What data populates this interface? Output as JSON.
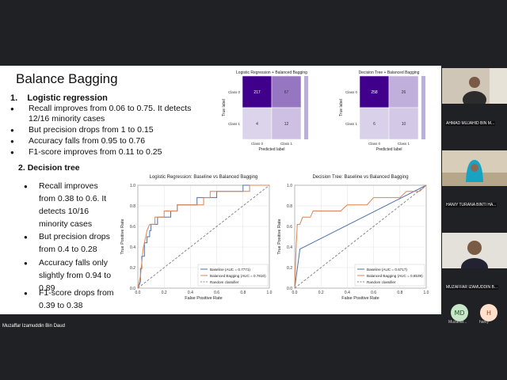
{
  "speaker_name": "Muzaffar Izamuddin Bin Daud",
  "slide": {
    "title": "Balance Bagging",
    "section1": {
      "number": "1.",
      "title": "Logistic regression"
    },
    "bullets1": [
      "Recall improves from 0.06 to 0.75. It detects",
      "12/16 minority cases",
      "But precision drops from 1 to 0.15",
      "Accuracy falls from 0.95 to 0.76",
      "F1-score improves from 0.11 to 0.25"
    ],
    "section2": {
      "number": "2.",
      "title": "Decision tree"
    },
    "bullets2": [
      [
        "Recall improves",
        "from 0.38 to 0.6. It",
        "detects 10/16",
        "minority cases"
      ],
      [
        "But precision drops",
        "from 0.4 to 0.28"
      ],
      [
        "Accuracy falls only",
        "slightly from 0.94 to",
        "0.89"
      ],
      [
        "F1-score drops from",
        "0.39 to 0.38"
      ]
    ]
  },
  "chart_data": [
    {
      "type": "heatmap",
      "title": "Logistic Regression + Balanced Bagging",
      "xlabel": "Predicted label",
      "ylabel": "True label",
      "x_categories": [
        "Class 0",
        "Class 1"
      ],
      "y_categories": [
        "Class 0",
        "Class 1"
      ],
      "values": [
        [
          217,
          67
        ],
        [
          4,
          12
        ]
      ]
    },
    {
      "type": "heatmap",
      "title": "Decision Tree + Balanced Bagging",
      "xlabel": "Predicted label",
      "ylabel": "True label",
      "x_categories": [
        "Class 0",
        "Class 1"
      ],
      "y_categories": [
        "Class 0",
        "Class 1"
      ],
      "values": [
        [
          258,
          26
        ],
        [
          6,
          10
        ]
      ]
    },
    {
      "type": "line",
      "title": "Logistic Regression: Baseline vs Balanced Bagging",
      "xlabel": "False Positive Rate",
      "ylabel": "True Positive Rate",
      "xlim": [
        0,
        1
      ],
      "ylim": [
        0,
        1
      ],
      "ticks": [
        "0.0",
        "0.2",
        "0.4",
        "0.6",
        "0.8",
        "1.0"
      ],
      "legend": "bottom-right",
      "series": [
        {
          "name": "Baseline (AUC = 0.7771)",
          "color": "#4c72b0",
          "points": [
            [
              0,
              0
            ],
            [
              0.02,
              0.06
            ],
            [
              0.02,
              0.19
            ],
            [
              0.03,
              0.19
            ],
            [
              0.03,
              0.31
            ],
            [
              0.05,
              0.31
            ],
            [
              0.05,
              0.44
            ],
            [
              0.07,
              0.44
            ],
            [
              0.07,
              0.5
            ],
            [
              0.09,
              0.5
            ],
            [
              0.09,
              0.56
            ],
            [
              0.1,
              0.56
            ],
            [
              0.1,
              0.62
            ],
            [
              0.15,
              0.62
            ],
            [
              0.15,
              0.69
            ],
            [
              0.25,
              0.69
            ],
            [
              0.25,
              0.75
            ],
            [
              0.3,
              0.75
            ],
            [
              0.3,
              0.81
            ],
            [
              0.45,
              0.81
            ],
            [
              0.45,
              0.88
            ],
            [
              0.6,
              0.88
            ],
            [
              0.6,
              0.94
            ],
            [
              0.8,
              0.94
            ],
            [
              0.8,
              1.0
            ],
            [
              1.0,
              1.0
            ]
          ]
        },
        {
          "name": "Balanced Bagging (AUC = 0.7810)",
          "color": "#dd8452",
          "points": [
            [
              0,
              0
            ],
            [
              0.02,
              0.12
            ],
            [
              0.03,
              0.25
            ],
            [
              0.04,
              0.38
            ],
            [
              0.06,
              0.5
            ],
            [
              0.07,
              0.56
            ],
            [
              0.09,
              0.62
            ],
            [
              0.13,
              0.62
            ],
            [
              0.13,
              0.69
            ],
            [
              0.2,
              0.69
            ],
            [
              0.2,
              0.75
            ],
            [
              0.3,
              0.75
            ],
            [
              0.3,
              0.81
            ],
            [
              0.5,
              0.81
            ],
            [
              0.5,
              0.88
            ],
            [
              0.55,
              0.88
            ],
            [
              0.55,
              0.94
            ],
            [
              0.85,
              0.94
            ],
            [
              0.85,
              1.0
            ],
            [
              1.0,
              1.0
            ]
          ]
        },
        {
          "name": "Random classifier",
          "color": "#888888",
          "dashed": true,
          "points": [
            [
              0,
              0
            ],
            [
              1,
              1
            ]
          ]
        }
      ]
    },
    {
      "type": "line",
      "title": "Decision Tree: Baseline vs Balanced Bagging",
      "xlabel": "False Positive Rate",
      "ylabel": "True Positive Rate",
      "xlim": [
        0,
        1
      ],
      "ylim": [
        0,
        1
      ],
      "ticks": [
        "0.0",
        "0.2",
        "0.4",
        "0.6",
        "0.8",
        "1.0"
      ],
      "legend": "bottom-right",
      "series": [
        {
          "name": "Baseline (AUC = 0.6717)",
          "color": "#4c72b0",
          "points": [
            [
              0,
              0
            ],
            [
              0.04,
              0.38
            ],
            [
              1,
              1
            ]
          ]
        },
        {
          "name": "Balanced Bagging (AUC = 0.6539)",
          "color": "#dd8452",
          "points": [
            [
              0,
              0
            ],
            [
              0.01,
              0.38
            ],
            [
              0.02,
              0.62
            ],
            [
              0.04,
              0.62
            ],
            [
              0.06,
              0.69
            ],
            [
              0.12,
              0.69
            ],
            [
              0.14,
              0.75
            ],
            [
              0.35,
              0.75
            ],
            [
              0.4,
              0.81
            ],
            [
              0.55,
              0.81
            ],
            [
              0.6,
              0.88
            ],
            [
              0.8,
              0.88
            ],
            [
              0.85,
              0.94
            ],
            [
              0.95,
              0.94
            ],
            [
              1,
              1
            ]
          ]
        },
        {
          "name": "Random classifier",
          "color": "#888888",
          "dashed": true,
          "points": [
            [
              0,
              0
            ],
            [
              1,
              1
            ]
          ]
        }
      ]
    }
  ],
  "participants": [
    {
      "name": "AHMAD MUJAHID BIN M..."
    },
    {
      "name": "HANIY TURANA BINTI HA..."
    },
    {
      "name": "MUZAFFAR IZAMUDDIN B..."
    }
  ],
  "avatars": [
    {
      "initials": "MD",
      "label": "Muzaffar...",
      "bg": "#c8e6c9",
      "fg": "#1b5e20"
    },
    {
      "initials": "H",
      "label": "haniy",
      "bg": "#ffe0cc",
      "fg": "#b23b00"
    }
  ]
}
